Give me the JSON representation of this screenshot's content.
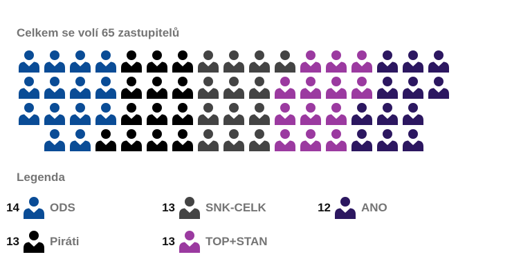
{
  "header": {
    "title": "Celkem se volí 65 zastupitelů"
  },
  "legend": {
    "title": "Legenda"
  },
  "chart_data": {
    "type": "seat-waffle",
    "total_seats": 65,
    "parties": [
      {
        "name": "ODS",
        "seats": 14,
        "color": "#0a4c96"
      },
      {
        "name": "Piráti",
        "seats": 13,
        "color": "#000000"
      },
      {
        "name": "SNK-CELK",
        "seats": 13,
        "color": "#444444"
      },
      {
        "name": "TOP+STAN",
        "seats": 13,
        "color": "#9b3aa0"
      },
      {
        "name": "ANO",
        "seats": 12,
        "color": "#2c1760"
      }
    ]
  }
}
